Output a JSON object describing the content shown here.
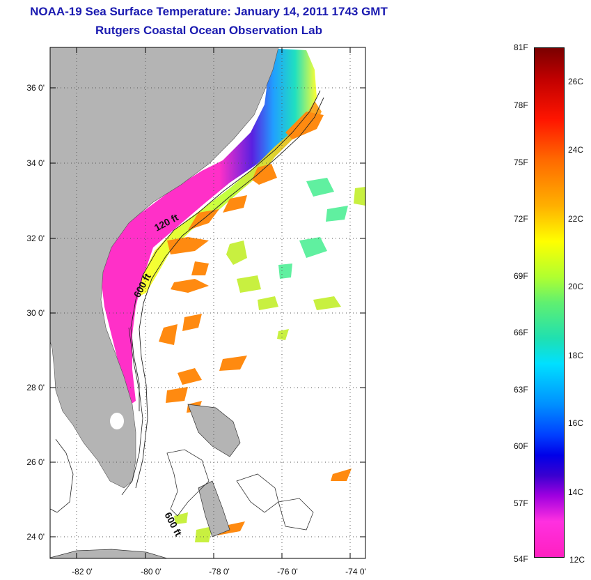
{
  "title_line1": "NOAA-19 Sea Surface Temperature:  January 14, 2011 1743 GMT",
  "title_line2": "Rutgers Coastal Ocean Observation Lab",
  "lat_labels": [
    "36 0'",
    "34 0'",
    "32 0'",
    "30 0'",
    "28 0'",
    "26 0'",
    "24 0'"
  ],
  "lon_labels": [
    "-82 0'",
    "-80 0'",
    "-78 0'",
    "-76 0'",
    "-74 0'"
  ],
  "contours": {
    "label_120": "120 ft",
    "label_600a": "600 ft",
    "label_600b": "600 ft"
  },
  "colorbar": {
    "f_labels": [
      "81F",
      "78F",
      "75F",
      "72F",
      "69F",
      "66F",
      "63F",
      "60F",
      "57F",
      "54F"
    ],
    "c_labels": [
      "26C",
      "24C",
      "22C",
      "20C",
      "18C",
      "16C",
      "14C",
      "12C"
    ]
  },
  "colors": {
    "land": "#b4b4b4",
    "title": "#1a1ab0",
    "cold_nearshore": "#ff30c8",
    "warm_gulfstream": "#ff8a10"
  }
}
